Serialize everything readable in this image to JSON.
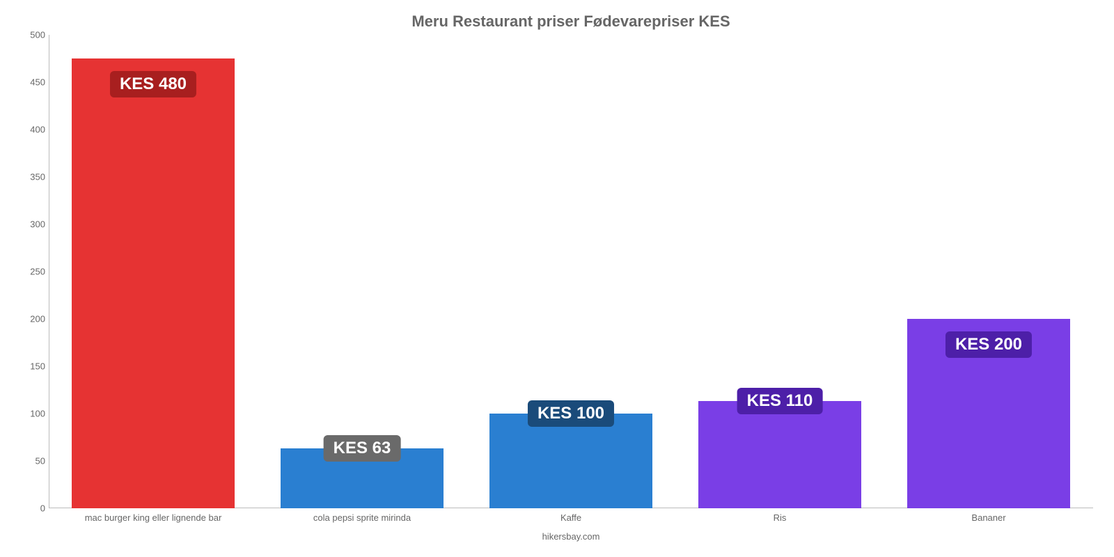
{
  "chart": {
    "type": "bar",
    "title": "Meru Restaurant priser Fødevarepriser KES",
    "title_fontsize": 22,
    "title_color": "#666666",
    "background_color": "#ffffff",
    "axis_color": "#bbbbbb",
    "tick_label_color": "#666666",
    "tick_fontsize": 13,
    "bar_width_ratio": 0.78,
    "ylim": [
      0,
      500
    ],
    "ytick_step": 50,
    "yticks": [
      {
        "value": 0,
        "label": "0"
      },
      {
        "value": 50,
        "label": "50"
      },
      {
        "value": 100,
        "label": "100"
      },
      {
        "value": 150,
        "label": "150"
      },
      {
        "value": 200,
        "label": "200"
      },
      {
        "value": 250,
        "label": "250"
      },
      {
        "value": 300,
        "label": "300"
      },
      {
        "value": 350,
        "label": "350"
      },
      {
        "value": 400,
        "label": "400"
      },
      {
        "value": 450,
        "label": "450"
      },
      {
        "value": 500,
        "label": "500"
      }
    ],
    "bars": [
      {
        "category": "mac burger king eller lignende bar",
        "value": 475,
        "display_label": "KES 480",
        "bar_color": "#e63333",
        "label_bg": "#a81f1f",
        "label_text_color": "#ffffff",
        "label_mode": "inside"
      },
      {
        "category": "cola pepsi sprite mirinda",
        "value": 63,
        "display_label": "KES 63",
        "bar_color": "#2a7fd1",
        "label_bg": "#6a6a6a",
        "label_text_color": "#ffffff",
        "label_mode": "overlap"
      },
      {
        "category": "Kaffe",
        "value": 100,
        "display_label": "KES 100",
        "bar_color": "#2a7fd1",
        "label_bg": "#1a4b7a",
        "label_text_color": "#ffffff",
        "label_mode": "overlap"
      },
      {
        "category": "Ris",
        "value": 113,
        "display_label": "KES 110",
        "bar_color": "#7a3ee6",
        "label_bg": "#4d1fa8",
        "label_text_color": "#ffffff",
        "label_mode": "overlap"
      },
      {
        "category": "Bananer",
        "value": 200,
        "display_label": "KES 200",
        "bar_color": "#7a3ee6",
        "label_bg": "#4d1fa8",
        "label_text_color": "#ffffff",
        "label_mode": "inside"
      }
    ],
    "data_label_fontsize": 24,
    "credit": "hikersbay.com"
  }
}
